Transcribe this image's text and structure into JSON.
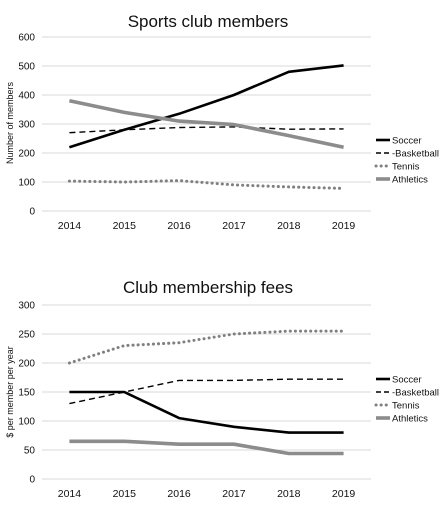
{
  "chart_data": [
    {
      "type": "line",
      "title": "Sports club members",
      "xlabel": "",
      "ylabel": "Number of members",
      "categories": [
        "2014",
        "2015",
        "2016",
        "2017",
        "2018",
        "2019"
      ],
      "ylim": [
        0,
        600
      ],
      "yticks": [
        0,
        100,
        200,
        300,
        400,
        500,
        600
      ],
      "grid": "horizontal",
      "legend_position": "right",
      "series": [
        {
          "name": "Soccer",
          "values": [
            220,
            280,
            335,
            400,
            480,
            502
          ],
          "color": "#000000",
          "style": "solid"
        },
        {
          "name": "Basketball",
          "legend_label": "-Basketball",
          "values": [
            270,
            280,
            288,
            290,
            282,
            283
          ],
          "color": "#000000",
          "style": "dashed"
        },
        {
          "name": "Tennis",
          "values": [
            103,
            100,
            105,
            90,
            83,
            78
          ],
          "color": "#808080",
          "style": "dotted"
        },
        {
          "name": "Athletics",
          "values": [
            380,
            340,
            310,
            298,
            260,
            220
          ],
          "color": "#8c8c8c",
          "style": "solid-thick"
        }
      ]
    },
    {
      "type": "line",
      "title": "Club membership fees",
      "xlabel": "",
      "ylabel": "$ per member per year",
      "categories": [
        "2014",
        "2015",
        "2016",
        "2017",
        "2018",
        "2019"
      ],
      "ylim": [
        0,
        300
      ],
      "yticks": [
        0,
        50,
        100,
        150,
        200,
        250,
        300
      ],
      "grid": "horizontal",
      "legend_position": "right",
      "series": [
        {
          "name": "Soccer",
          "values": [
            150,
            150,
            105,
            90,
            80,
            80
          ],
          "color": "#000000",
          "style": "solid"
        },
        {
          "name": "Basketball",
          "legend_label": "-Basketball",
          "values": [
            130,
            150,
            170,
            170,
            172,
            172
          ],
          "color": "#000000",
          "style": "dashed"
        },
        {
          "name": "Tennis",
          "values": [
            200,
            230,
            235,
            250,
            255,
            255
          ],
          "color": "#808080",
          "style": "dotted"
        },
        {
          "name": "Athletics",
          "values": [
            65,
            65,
            60,
            60,
            44,
            44
          ],
          "color": "#8c8c8c",
          "style": "solid-thick"
        }
      ]
    }
  ]
}
